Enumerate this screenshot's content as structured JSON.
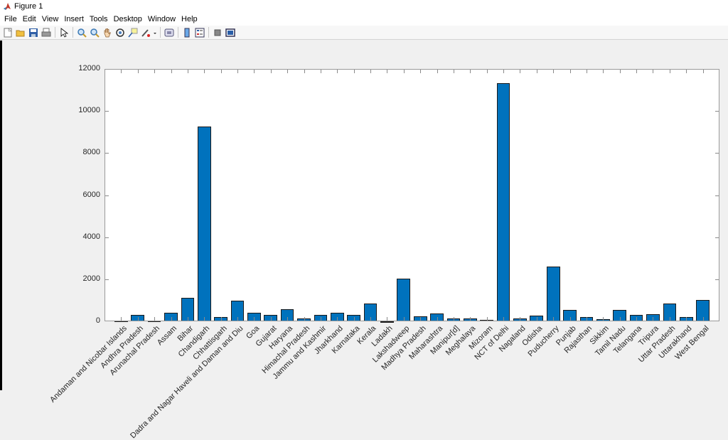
{
  "window": {
    "title": "Figure 1"
  },
  "menubar": {
    "items": [
      "File",
      "Edit",
      "View",
      "Insert",
      "Tools",
      "Desktop",
      "Window",
      "Help"
    ]
  },
  "toolbar": {
    "icons": [
      "new-figure-icon",
      "open-file-icon",
      "save-icon",
      "print-icon",
      "edit-plot-arrow-icon",
      "zoom-in-icon",
      "zoom-out-icon",
      "pan-hand-icon",
      "rotate-3d-icon",
      "data-cursor-icon",
      "brush-icon",
      "link-plot-icon",
      "insert-colorbar-icon",
      "insert-legend-icon",
      "hide-plot-tools-icon",
      "show-plot-tools-icon"
    ]
  },
  "chart_data": {
    "type": "bar",
    "title": "",
    "xlabel": "",
    "ylabel": "",
    "ylim": [
      0,
      12000
    ],
    "yticks": [
      0,
      2000,
      4000,
      6000,
      8000,
      10000,
      12000
    ],
    "ytick_labels": [
      "0",
      "2000",
      "4000",
      "6000",
      "8000",
      "10000",
      "12000"
    ],
    "grid": false,
    "bar_color": "#0072bd",
    "categories": [
      "Andaman and Nicobar Islands",
      "Andhra Pradesh",
      "Arunachal Pradesh",
      "Assam",
      "Bihar",
      "Chandigarh",
      "Chhattisgarh",
      "Dadra and Nagar Haveli and Daman and Diu",
      "Goa",
      "Gujarat",
      "Haryana",
      "Himachal Pradesh",
      "Jammu and Kashmir",
      "Jharkhand",
      "Karnataka",
      "Kerala",
      "Ladakh",
      "Lakshadweep",
      "Madhya Pradesh",
      "Maharashtra",
      "Manipur[d]",
      "Meghalaya",
      "Mizoram",
      "NCT of Delhi",
      "Nagaland",
      "Odisha",
      "Puducherry",
      "Punjab",
      "Rajasthan",
      "Sikkim",
      "Tamil Nadu",
      "Telangana",
      "Tripura",
      "Uttar Pradesh",
      "Uttarakhand",
      "West Bengal"
    ],
    "values": [
      46,
      308,
      17,
      398,
      1106,
      9258,
      189,
      970,
      394,
      308,
      573,
      123,
      297,
      414,
      319,
      860,
      3,
      2013,
      236,
      365,
      122,
      132,
      52,
      11320,
      119,
      270,
      2598,
      550,
      200,
      86,
      555,
      312,
      350,
      829,
      189,
      1028
    ]
  }
}
